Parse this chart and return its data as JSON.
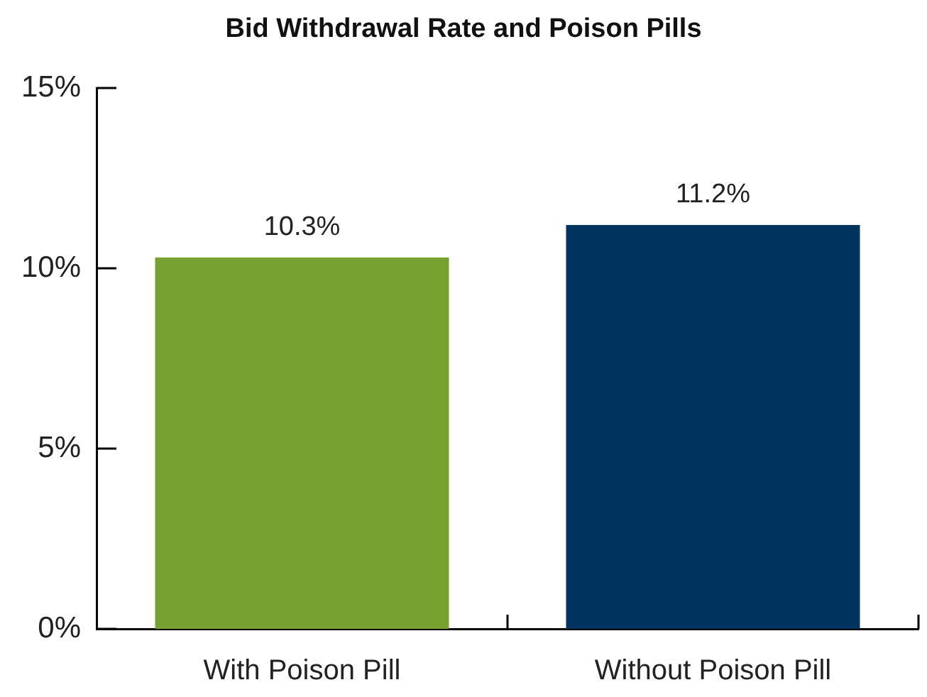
{
  "chart_data": {
    "type": "bar",
    "title": "Bid Withdrawal Rate and Poison Pills",
    "categories": [
      "With Poison Pill",
      "Without Poison Pill"
    ],
    "values": [
      10.3,
      11.2
    ],
    "colors": [
      "#78a22f",
      "#00345e"
    ],
    "ylim": [
      0,
      15
    ],
    "yticks": [
      {
        "value": 0,
        "label": "0%"
      },
      {
        "value": 5,
        "label": "5%"
      },
      {
        "value": 10,
        "label": "10%"
      },
      {
        "value": 15,
        "label": "15%"
      }
    ],
    "grid": false,
    "value_labels": [
      "10.3%",
      "11.2%"
    ]
  }
}
